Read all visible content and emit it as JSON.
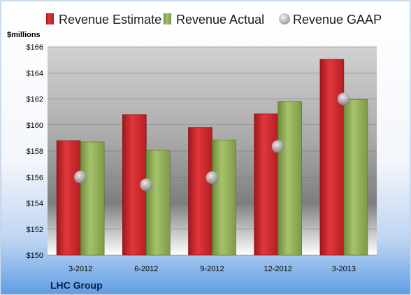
{
  "chart_data": {
    "type": "bar",
    "ylabel": "$millions",
    "ylim": [
      150,
      166
    ],
    "yticks": [
      150,
      152,
      154,
      156,
      158,
      160,
      162,
      164,
      166
    ],
    "ytick_labels": [
      "$150",
      "$152",
      "$154",
      "$156",
      "$158",
      "$160",
      "$162",
      "$164",
      "$166"
    ],
    "categories": [
      "3-2012",
      "6-2012",
      "9-2012",
      "12-2012",
      "3-2013"
    ],
    "series": [
      {
        "name": "Revenue Estimate",
        "kind": "bar",
        "color": "#cc1f24",
        "values": [
          158.8,
          160.8,
          159.8,
          160.85,
          165.05
        ]
      },
      {
        "name": "Revenue Actual",
        "kind": "bar",
        "color": "#8fac55",
        "values": [
          158.7,
          158.05,
          158.85,
          161.8,
          161.95
        ]
      },
      {
        "name": "Revenue GAAP",
        "kind": "marker",
        "color": "#b0b0b8",
        "values": [
          156.0,
          155.4,
          155.95,
          158.35,
          162.0
        ]
      }
    ],
    "legend_position": "top",
    "grid": true,
    "company": "LHC Group"
  }
}
